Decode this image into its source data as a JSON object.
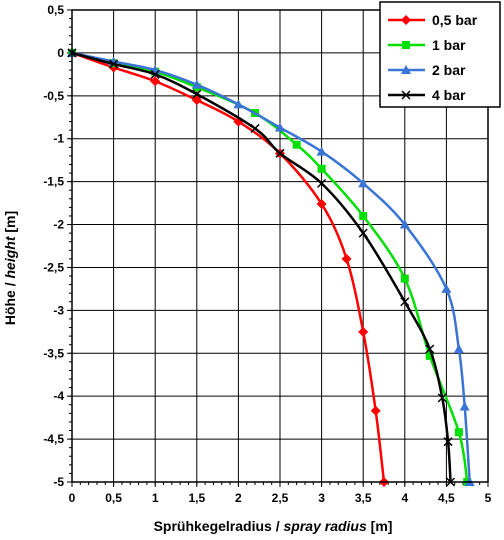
{
  "chart_data": {
    "type": "line",
    "xlabel_main": "Sprühkegelradius / ",
    "xlabel_italic": "spray radius",
    "xlabel_unit": " [m]",
    "ylabel_main": "Höhe / ",
    "ylabel_italic": "height",
    "ylabel_unit": " [m]",
    "xlim": [
      0,
      5
    ],
    "ylim": [
      -5,
      0.5
    ],
    "x_ticks": [
      "0",
      "0,5",
      "1",
      "1,5",
      "2",
      "2,5",
      "3",
      "3,5",
      "4",
      "4,5",
      "5"
    ],
    "y_ticks": [
      "0,5",
      "0",
      "-0,5",
      "-1",
      "-1,5",
      "-2",
      "-2,5",
      "-3",
      "-3,5",
      "-4",
      "-4,5",
      "-5"
    ],
    "grid": true,
    "legend_position": "top-right",
    "series": [
      {
        "name": "0,5 bar",
        "color": "#ff0000",
        "marker": "diamond",
        "points": [
          [
            0,
            0
          ],
          [
            0.5,
            -0.17
          ],
          [
            1,
            -0.33
          ],
          [
            1.5,
            -0.55
          ],
          [
            2,
            -0.8
          ],
          [
            2.5,
            -1.17
          ],
          [
            3,
            -1.76
          ],
          [
            3.3,
            -2.4
          ],
          [
            3.5,
            -3.25
          ],
          [
            3.65,
            -4.17
          ],
          [
            3.75,
            -5
          ]
        ]
      },
      {
        "name": "1 bar",
        "color": "#00e000",
        "marker": "square",
        "points": [
          [
            0,
            0
          ],
          [
            0.5,
            -0.12
          ],
          [
            1,
            -0.22
          ],
          [
            1.5,
            -0.4
          ],
          [
            2.2,
            -0.7
          ],
          [
            2.7,
            -1.07
          ],
          [
            3,
            -1.35
          ],
          [
            3.5,
            -1.9
          ],
          [
            4,
            -2.63
          ],
          [
            4.3,
            -3.53
          ],
          [
            4.65,
            -4.42
          ],
          [
            4.75,
            -5
          ]
        ]
      },
      {
        "name": "2 bar",
        "color": "#3a75d6",
        "marker": "triangle",
        "points": [
          [
            0,
            0
          ],
          [
            0.5,
            -0.1
          ],
          [
            1,
            -0.2
          ],
          [
            1.5,
            -0.37
          ],
          [
            2,
            -0.6
          ],
          [
            2.5,
            -0.87
          ],
          [
            3,
            -1.15
          ],
          [
            3.5,
            -1.52
          ],
          [
            4,
            -2
          ],
          [
            4.5,
            -2.75
          ],
          [
            4.65,
            -3.45
          ],
          [
            4.72,
            -4.12
          ],
          [
            4.78,
            -5
          ]
        ]
      },
      {
        "name": "4 bar",
        "color": "#000000",
        "marker": "x",
        "points": [
          [
            0,
            0
          ],
          [
            0.5,
            -0.13
          ],
          [
            1,
            -0.25
          ],
          [
            1.5,
            -0.48
          ],
          [
            2.2,
            -0.88
          ],
          [
            2.5,
            -1.17
          ],
          [
            3,
            -1.52
          ],
          [
            3.5,
            -2.1
          ],
          [
            4,
            -2.9
          ],
          [
            4.3,
            -3.45
          ],
          [
            4.45,
            -4.02
          ],
          [
            4.52,
            -4.53
          ],
          [
            4.55,
            -5
          ]
        ]
      }
    ]
  }
}
